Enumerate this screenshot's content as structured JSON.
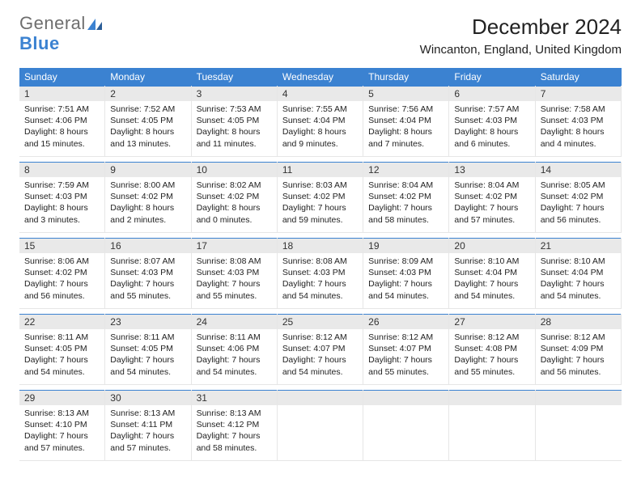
{
  "logo": {
    "line1": "General",
    "line2": "Blue"
  },
  "title": "December 2024",
  "subtitle": "Wincanton, England, United Kingdom",
  "colors": {
    "accent": "#3b82d1",
    "datebar_bg": "#e9e9e9",
    "text": "#222222",
    "bg": "#ffffff"
  },
  "dayheads": [
    "Sunday",
    "Monday",
    "Tuesday",
    "Wednesday",
    "Thursday",
    "Friday",
    "Saturday"
  ],
  "weeks": [
    [
      {
        "date": "1",
        "sunrise": "Sunrise: 7:51 AM",
        "sunset": "Sunset: 4:06 PM",
        "daylight1": "Daylight: 8 hours",
        "daylight2": "and 15 minutes."
      },
      {
        "date": "2",
        "sunrise": "Sunrise: 7:52 AM",
        "sunset": "Sunset: 4:05 PM",
        "daylight1": "Daylight: 8 hours",
        "daylight2": "and 13 minutes."
      },
      {
        "date": "3",
        "sunrise": "Sunrise: 7:53 AM",
        "sunset": "Sunset: 4:05 PM",
        "daylight1": "Daylight: 8 hours",
        "daylight2": "and 11 minutes."
      },
      {
        "date": "4",
        "sunrise": "Sunrise: 7:55 AM",
        "sunset": "Sunset: 4:04 PM",
        "daylight1": "Daylight: 8 hours",
        "daylight2": "and 9 minutes."
      },
      {
        "date": "5",
        "sunrise": "Sunrise: 7:56 AM",
        "sunset": "Sunset: 4:04 PM",
        "daylight1": "Daylight: 8 hours",
        "daylight2": "and 7 minutes."
      },
      {
        "date": "6",
        "sunrise": "Sunrise: 7:57 AM",
        "sunset": "Sunset: 4:03 PM",
        "daylight1": "Daylight: 8 hours",
        "daylight2": "and 6 minutes."
      },
      {
        "date": "7",
        "sunrise": "Sunrise: 7:58 AM",
        "sunset": "Sunset: 4:03 PM",
        "daylight1": "Daylight: 8 hours",
        "daylight2": "and 4 minutes."
      }
    ],
    [
      {
        "date": "8",
        "sunrise": "Sunrise: 7:59 AM",
        "sunset": "Sunset: 4:03 PM",
        "daylight1": "Daylight: 8 hours",
        "daylight2": "and 3 minutes."
      },
      {
        "date": "9",
        "sunrise": "Sunrise: 8:00 AM",
        "sunset": "Sunset: 4:02 PM",
        "daylight1": "Daylight: 8 hours",
        "daylight2": "and 2 minutes."
      },
      {
        "date": "10",
        "sunrise": "Sunrise: 8:02 AM",
        "sunset": "Sunset: 4:02 PM",
        "daylight1": "Daylight: 8 hours",
        "daylight2": "and 0 minutes."
      },
      {
        "date": "11",
        "sunrise": "Sunrise: 8:03 AM",
        "sunset": "Sunset: 4:02 PM",
        "daylight1": "Daylight: 7 hours",
        "daylight2": "and 59 minutes."
      },
      {
        "date": "12",
        "sunrise": "Sunrise: 8:04 AM",
        "sunset": "Sunset: 4:02 PM",
        "daylight1": "Daylight: 7 hours",
        "daylight2": "and 58 minutes."
      },
      {
        "date": "13",
        "sunrise": "Sunrise: 8:04 AM",
        "sunset": "Sunset: 4:02 PM",
        "daylight1": "Daylight: 7 hours",
        "daylight2": "and 57 minutes."
      },
      {
        "date": "14",
        "sunrise": "Sunrise: 8:05 AM",
        "sunset": "Sunset: 4:02 PM",
        "daylight1": "Daylight: 7 hours",
        "daylight2": "and 56 minutes."
      }
    ],
    [
      {
        "date": "15",
        "sunrise": "Sunrise: 8:06 AM",
        "sunset": "Sunset: 4:02 PM",
        "daylight1": "Daylight: 7 hours",
        "daylight2": "and 56 minutes."
      },
      {
        "date": "16",
        "sunrise": "Sunrise: 8:07 AM",
        "sunset": "Sunset: 4:03 PM",
        "daylight1": "Daylight: 7 hours",
        "daylight2": "and 55 minutes."
      },
      {
        "date": "17",
        "sunrise": "Sunrise: 8:08 AM",
        "sunset": "Sunset: 4:03 PM",
        "daylight1": "Daylight: 7 hours",
        "daylight2": "and 55 minutes."
      },
      {
        "date": "18",
        "sunrise": "Sunrise: 8:08 AM",
        "sunset": "Sunset: 4:03 PM",
        "daylight1": "Daylight: 7 hours",
        "daylight2": "and 54 minutes."
      },
      {
        "date": "19",
        "sunrise": "Sunrise: 8:09 AM",
        "sunset": "Sunset: 4:03 PM",
        "daylight1": "Daylight: 7 hours",
        "daylight2": "and 54 minutes."
      },
      {
        "date": "20",
        "sunrise": "Sunrise: 8:10 AM",
        "sunset": "Sunset: 4:04 PM",
        "daylight1": "Daylight: 7 hours",
        "daylight2": "and 54 minutes."
      },
      {
        "date": "21",
        "sunrise": "Sunrise: 8:10 AM",
        "sunset": "Sunset: 4:04 PM",
        "daylight1": "Daylight: 7 hours",
        "daylight2": "and 54 minutes."
      }
    ],
    [
      {
        "date": "22",
        "sunrise": "Sunrise: 8:11 AM",
        "sunset": "Sunset: 4:05 PM",
        "daylight1": "Daylight: 7 hours",
        "daylight2": "and 54 minutes."
      },
      {
        "date": "23",
        "sunrise": "Sunrise: 8:11 AM",
        "sunset": "Sunset: 4:05 PM",
        "daylight1": "Daylight: 7 hours",
        "daylight2": "and 54 minutes."
      },
      {
        "date": "24",
        "sunrise": "Sunrise: 8:11 AM",
        "sunset": "Sunset: 4:06 PM",
        "daylight1": "Daylight: 7 hours",
        "daylight2": "and 54 minutes."
      },
      {
        "date": "25",
        "sunrise": "Sunrise: 8:12 AM",
        "sunset": "Sunset: 4:07 PM",
        "daylight1": "Daylight: 7 hours",
        "daylight2": "and 54 minutes."
      },
      {
        "date": "26",
        "sunrise": "Sunrise: 8:12 AM",
        "sunset": "Sunset: 4:07 PM",
        "daylight1": "Daylight: 7 hours",
        "daylight2": "and 55 minutes."
      },
      {
        "date": "27",
        "sunrise": "Sunrise: 8:12 AM",
        "sunset": "Sunset: 4:08 PM",
        "daylight1": "Daylight: 7 hours",
        "daylight2": "and 55 minutes."
      },
      {
        "date": "28",
        "sunrise": "Sunrise: 8:12 AM",
        "sunset": "Sunset: 4:09 PM",
        "daylight1": "Daylight: 7 hours",
        "daylight2": "and 56 minutes."
      }
    ],
    [
      {
        "date": "29",
        "sunrise": "Sunrise: 8:13 AM",
        "sunset": "Sunset: 4:10 PM",
        "daylight1": "Daylight: 7 hours",
        "daylight2": "and 57 minutes."
      },
      {
        "date": "30",
        "sunrise": "Sunrise: 8:13 AM",
        "sunset": "Sunset: 4:11 PM",
        "daylight1": "Daylight: 7 hours",
        "daylight2": "and 57 minutes."
      },
      {
        "date": "31",
        "sunrise": "Sunrise: 8:13 AM",
        "sunset": "Sunset: 4:12 PM",
        "daylight1": "Daylight: 7 hours",
        "daylight2": "and 58 minutes."
      },
      {
        "date": "",
        "empty": true
      },
      {
        "date": "",
        "empty": true
      },
      {
        "date": "",
        "empty": true
      },
      {
        "date": "",
        "empty": true
      }
    ]
  ]
}
